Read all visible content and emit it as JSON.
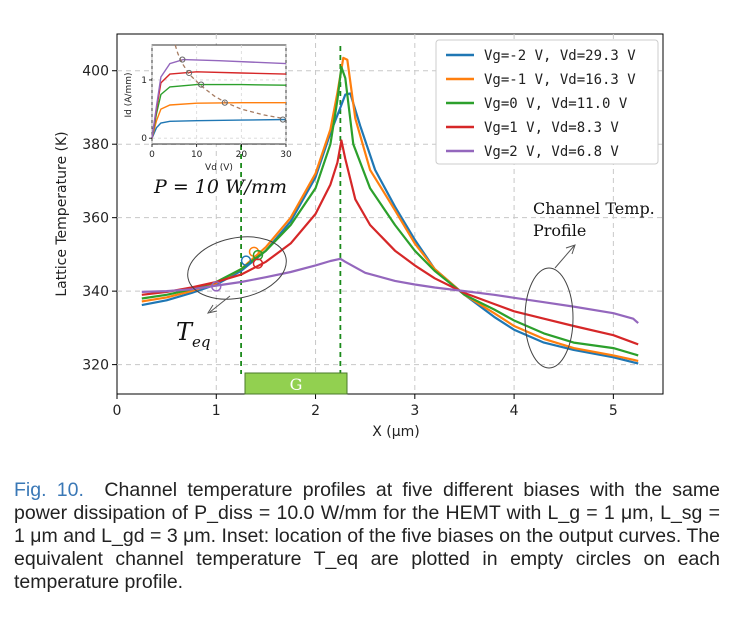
{
  "chart_data": {
    "type": "line",
    "xlabel": "X (µm)",
    "ylabel": "Lattice Temperature (K)",
    "xlim": [
      0,
      5.5
    ],
    "ylim": [
      312,
      410
    ],
    "xticks": [
      0,
      1,
      2,
      3,
      4,
      5
    ],
    "yticks": [
      320,
      340,
      360,
      380,
      400
    ],
    "grid": true,
    "legend_position": "top-right",
    "series": [
      {
        "name": "Vg=-2 V, Vd=29.3 V",
        "color": "#1f77b4",
        "points": [
          [
            0.25,
            336.2
          ],
          [
            0.5,
            337.5
          ],
          [
            0.75,
            339.5
          ],
          [
            1.0,
            341.8
          ],
          [
            1.25,
            345.5
          ],
          [
            1.5,
            351
          ],
          [
            1.75,
            359
          ],
          [
            2.0,
            371
          ],
          [
            2.15,
            383
          ],
          [
            2.25,
            390
          ],
          [
            2.3,
            393.5
          ],
          [
            2.35,
            393.8
          ],
          [
            2.45,
            385
          ],
          [
            2.6,
            373
          ],
          [
            2.8,
            363
          ],
          [
            3.0,
            354
          ],
          [
            3.2,
            346
          ],
          [
            3.5,
            339
          ],
          [
            3.8,
            333
          ],
          [
            4.0,
            329.5
          ],
          [
            4.3,
            326
          ],
          [
            4.6,
            324
          ],
          [
            5.0,
            322
          ],
          [
            5.25,
            320.3
          ]
        ]
      },
      {
        "name": "Vg=-1 V, Vd=16.3 V",
        "color": "#ff7f0e",
        "points": [
          [
            0.25,
            337.2
          ],
          [
            0.5,
            338.3
          ],
          [
            0.75,
            340
          ],
          [
            1.0,
            342.2
          ],
          [
            1.25,
            346
          ],
          [
            1.5,
            352
          ],
          [
            1.75,
            360
          ],
          [
            2.0,
            372
          ],
          [
            2.15,
            384
          ],
          [
            2.22,
            394
          ],
          [
            2.28,
            403.5
          ],
          [
            2.32,
            403
          ],
          [
            2.4,
            387
          ],
          [
            2.55,
            373
          ],
          [
            2.8,
            362
          ],
          [
            3.0,
            353
          ],
          [
            3.2,
            346
          ],
          [
            3.5,
            339
          ],
          [
            3.8,
            334
          ],
          [
            4.0,
            330.5
          ],
          [
            4.3,
            327
          ],
          [
            4.6,
            324.5
          ],
          [
            5.0,
            322.5
          ],
          [
            5.25,
            321
          ]
        ]
      },
      {
        "name": "Vg=0 V, Vd=11.0 V",
        "color": "#2ca02c",
        "points": [
          [
            0.25,
            338
          ],
          [
            0.5,
            339
          ],
          [
            0.75,
            340.5
          ],
          [
            1.0,
            342.5
          ],
          [
            1.25,
            346
          ],
          [
            1.5,
            351
          ],
          [
            1.75,
            358
          ],
          [
            2.0,
            368
          ],
          [
            2.15,
            380
          ],
          [
            2.22,
            392
          ],
          [
            2.26,
            401
          ],
          [
            2.3,
            398
          ],
          [
            2.38,
            380
          ],
          [
            2.55,
            368
          ],
          [
            2.8,
            358
          ],
          [
            3.0,
            351
          ],
          [
            3.2,
            345.5
          ],
          [
            3.5,
            339
          ],
          [
            3.8,
            335
          ],
          [
            4.0,
            332
          ],
          [
            4.3,
            328.5
          ],
          [
            4.6,
            326
          ],
          [
            5.0,
            324.5
          ],
          [
            5.25,
            322.5
          ]
        ]
      },
      {
        "name": "Vg=1 V, Vd=8.3 V",
        "color": "#d62728",
        "points": [
          [
            0.25,
            339
          ],
          [
            0.5,
            339.8
          ],
          [
            0.75,
            341
          ],
          [
            1.0,
            342.5
          ],
          [
            1.25,
            344.5
          ],
          [
            1.5,
            348
          ],
          [
            1.75,
            353
          ],
          [
            2.0,
            361
          ],
          [
            2.15,
            369
          ],
          [
            2.22,
            375
          ],
          [
            2.26,
            381
          ],
          [
            2.3,
            376
          ],
          [
            2.4,
            365
          ],
          [
            2.55,
            358
          ],
          [
            2.8,
            351
          ],
          [
            3.0,
            347
          ],
          [
            3.2,
            343.5
          ],
          [
            3.5,
            339.5
          ],
          [
            3.8,
            336.5
          ],
          [
            4.0,
            334.5
          ],
          [
            4.3,
            332.5
          ],
          [
            4.6,
            330.5
          ],
          [
            5.0,
            328
          ],
          [
            5.25,
            325.5
          ]
        ]
      },
      {
        "name": "Vg=2 V, Vd=6.8 V",
        "color": "#9467bd",
        "points": [
          [
            0.25,
            339.8
          ],
          [
            0.5,
            340
          ],
          [
            0.75,
            340.5
          ],
          [
            1.0,
            341.5
          ],
          [
            1.25,
            342.5
          ],
          [
            1.5,
            343.8
          ],
          [
            1.75,
            345.2
          ],
          [
            2.0,
            347
          ],
          [
            2.15,
            348.2
          ],
          [
            2.25,
            348.8
          ],
          [
            2.3,
            348
          ],
          [
            2.5,
            345
          ],
          [
            2.8,
            342.8
          ],
          [
            3.0,
            341.8
          ],
          [
            3.2,
            341
          ],
          [
            3.5,
            340
          ],
          [
            3.8,
            339
          ],
          [
            4.0,
            338.2
          ],
          [
            4.3,
            337
          ],
          [
            4.6,
            335.8
          ],
          [
            5.0,
            334
          ],
          [
            5.2,
            332.5
          ],
          [
            5.25,
            331.3
          ]
        ]
      }
    ],
    "teq_markers": [
      {
        "x": 1.0,
        "y": 341.3,
        "color": "#9467bd"
      },
      {
        "x": 1.3,
        "y": 348.3,
        "color": "#1f77b4"
      },
      {
        "x": 1.38,
        "y": 350.7,
        "color": "#ff7f0e"
      },
      {
        "x": 1.42,
        "y": 349.8,
        "color": "#2ca02c"
      },
      {
        "x": 1.42,
        "y": 347.5,
        "color": "#d62728"
      }
    ],
    "gate_lines_x": [
      1.25,
      2.25
    ],
    "gate_label": "G",
    "power_label": "P = 10 W/mm",
    "teq_label_main": "T",
    "teq_label_sub": "eq",
    "profile_label_line1": "Channel Temp.",
    "profile_label_line2": "Profile",
    "inset": {
      "xlabel": "Vd (V)",
      "ylabel": "Id (A/mm)",
      "xlim": [
        0,
        30
      ],
      "ylim": [
        -0.1,
        1.6
      ],
      "xticks": [
        0,
        10,
        20,
        30
      ],
      "yticks": [
        0,
        1
      ],
      "curves": [
        {
          "color": "#1f77b4",
          "points": [
            [
              0,
              0
            ],
            [
              1,
              0.18
            ],
            [
              2,
              0.26
            ],
            [
              4,
              0.29
            ],
            [
              10,
              0.3
            ],
            [
              20,
              0.31
            ],
            [
              30,
              0.32
            ]
          ]
        },
        {
          "color": "#ff7f0e",
          "points": [
            [
              0,
              0
            ],
            [
              1,
              0.3
            ],
            [
              2,
              0.5
            ],
            [
              4,
              0.57
            ],
            [
              10,
              0.6
            ],
            [
              20,
              0.61
            ],
            [
              30,
              0.61
            ]
          ]
        },
        {
          "color": "#2ca02c",
          "points": [
            [
              0,
              0
            ],
            [
              1,
              0.42
            ],
            [
              2,
              0.75
            ],
            [
              4,
              0.88
            ],
            [
              10,
              0.92
            ],
            [
              20,
              0.92
            ],
            [
              30,
              0.91
            ]
          ]
        },
        {
          "color": "#d62728",
          "points": [
            [
              0,
              0
            ],
            [
              1,
              0.5
            ],
            [
              2,
              0.95
            ],
            [
              4,
              1.1
            ],
            [
              10,
              1.14
            ],
            [
              20,
              1.12
            ],
            [
              30,
              1.1
            ]
          ]
        },
        {
          "color": "#9467bd",
          "points": [
            [
              0,
              0
            ],
            [
              1,
              0.55
            ],
            [
              2,
              1.05
            ],
            [
              4,
              1.28
            ],
            [
              7,
              1.35
            ],
            [
              15,
              1.33
            ],
            [
              30,
              1.28
            ]
          ]
        }
      ],
      "power_curve": [
        [
          5.2,
          1.6
        ],
        [
          5.8,
          1.45
        ],
        [
          6.8,
          1.28
        ],
        [
          8.3,
          1.1
        ],
        [
          11,
          0.9
        ],
        [
          14,
          0.72
        ],
        [
          16.3,
          0.62
        ],
        [
          20,
          0.5
        ],
        [
          25,
          0.4
        ],
        [
          29.3,
          0.34
        ]
      ],
      "markers": [
        [
          6.8,
          1.35
        ],
        [
          8.3,
          1.12
        ],
        [
          11.0,
          0.92
        ],
        [
          16.3,
          0.61
        ],
        [
          29.3,
          0.32
        ]
      ]
    }
  },
  "caption": {
    "label": "Fig. 10.",
    "text": "Channel temperature profiles at five different biases with the same power dissipation of P_diss = 10.0 W/mm for the HEMT with L_g = 1 μm, L_sg = 1 μm and L_gd = 3 μm. Inset: location of the five biases on the output curves. The equivalent channel temperature T_eq are plotted in empty circles on each temperature profile."
  }
}
